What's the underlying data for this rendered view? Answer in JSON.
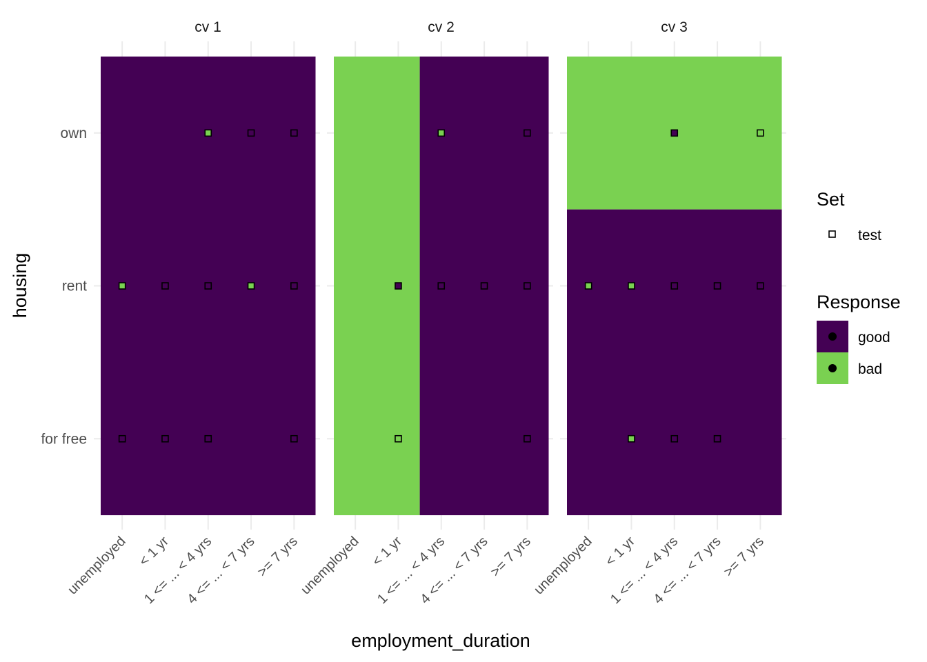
{
  "chart_data": {
    "type": "heatmap",
    "title": "",
    "xlabel": "employment_duration",
    "ylabel": "housing",
    "x_categories": [
      "unemployed",
      "< 1 yr",
      "1 <= ... < 4 yrs",
      "4 <= ... < 7 yrs",
      ">= 7 yrs"
    ],
    "y_categories": [
      "own",
      "rent",
      "for free"
    ],
    "facets": [
      {
        "label": "cv 1",
        "regions": [
          {
            "x_from": "unemployed",
            "x_to": ">= 7 yrs",
            "y_from": "own",
            "y_to": "for free",
            "response": "good"
          }
        ],
        "points": [
          {
            "x": "1 <= ... < 4 yrs",
            "y": "own",
            "response": "bad"
          },
          {
            "x": "4 <= ... < 7 yrs",
            "y": "own",
            "response": "good"
          },
          {
            "x": ">= 7 yrs",
            "y": "own",
            "response": "good"
          },
          {
            "x": "unemployed",
            "y": "rent",
            "response": "bad"
          },
          {
            "x": "< 1 yr",
            "y": "rent",
            "response": "good"
          },
          {
            "x": "1 <= ... < 4 yrs",
            "y": "rent",
            "response": "good"
          },
          {
            "x": "4 <= ... < 7 yrs",
            "y": "rent",
            "response": "bad"
          },
          {
            "x": ">= 7 yrs",
            "y": "rent",
            "response": "good"
          },
          {
            "x": "unemployed",
            "y": "for free",
            "response": "good"
          },
          {
            "x": "< 1 yr",
            "y": "for free",
            "response": "good"
          },
          {
            "x": "1 <= ... < 4 yrs",
            "y": "for free",
            "response": "good"
          },
          {
            "x": ">= 7 yrs",
            "y": "for free",
            "response": "good"
          }
        ]
      },
      {
        "label": "cv 2",
        "regions": [
          {
            "x_from": "unemployed",
            "x_to": "< 1 yr",
            "y_from": "own",
            "y_to": "for free",
            "response": "bad"
          },
          {
            "x_from": "1 <= ... < 4 yrs",
            "x_to": ">= 7 yrs",
            "y_from": "own",
            "y_to": "for free",
            "response": "good"
          }
        ],
        "points": [
          {
            "x": "1 <= ... < 4 yrs",
            "y": "own",
            "response": "bad"
          },
          {
            "x": ">= 7 yrs",
            "y": "own",
            "response": "good"
          },
          {
            "x": "< 1 yr",
            "y": "rent",
            "response": "good"
          },
          {
            "x": "1 <= ... < 4 yrs",
            "y": "rent",
            "response": "good"
          },
          {
            "x": "4 <= ... < 7 yrs",
            "y": "rent",
            "response": "good"
          },
          {
            "x": ">= 7 yrs",
            "y": "rent",
            "response": "good"
          },
          {
            "x": "< 1 yr",
            "y": "for free",
            "response": "bad"
          },
          {
            "x": ">= 7 yrs",
            "y": "for free",
            "response": "good"
          }
        ]
      },
      {
        "label": "cv 3",
        "regions": [
          {
            "x_from": "unemployed",
            "x_to": ">= 7 yrs",
            "y_from": "own",
            "y_to": "own",
            "response": "bad"
          },
          {
            "x_from": "unemployed",
            "x_to": ">= 7 yrs",
            "y_from": "rent",
            "y_to": "for free",
            "response": "good"
          }
        ],
        "points": [
          {
            "x": "1 <= ... < 4 yrs",
            "y": "own",
            "response": "good"
          },
          {
            "x": ">= 7 yrs",
            "y": "own",
            "response": "bad"
          },
          {
            "x": "unemployed",
            "y": "rent",
            "response": "bad"
          },
          {
            "x": "< 1 yr",
            "y": "rent",
            "response": "bad"
          },
          {
            "x": "1 <= ... < 4 yrs",
            "y": "rent",
            "response": "good"
          },
          {
            "x": "4 <= ... < 7 yrs",
            "y": "rent",
            "response": "good"
          },
          {
            "x": ">= 7 yrs",
            "y": "rent",
            "response": "good"
          },
          {
            "x": "< 1 yr",
            "y": "for free",
            "response": "bad"
          },
          {
            "x": "1 <= ... < 4 yrs",
            "y": "for free",
            "response": "good"
          },
          {
            "x": "4 <= ... < 7 yrs",
            "y": "for free",
            "response": "good"
          }
        ]
      }
    ],
    "colors": {
      "good": "#440154",
      "bad": "#7AD151"
    },
    "legend": {
      "placement": "right",
      "set": {
        "title": "Set",
        "items": [
          {
            "label": "test",
            "shape": "open-square"
          }
        ]
      },
      "response": {
        "title": "Response",
        "items": [
          {
            "label": "good",
            "color": "#440154"
          },
          {
            "label": "bad",
            "color": "#7AD151"
          }
        ]
      }
    },
    "grid": true
  }
}
